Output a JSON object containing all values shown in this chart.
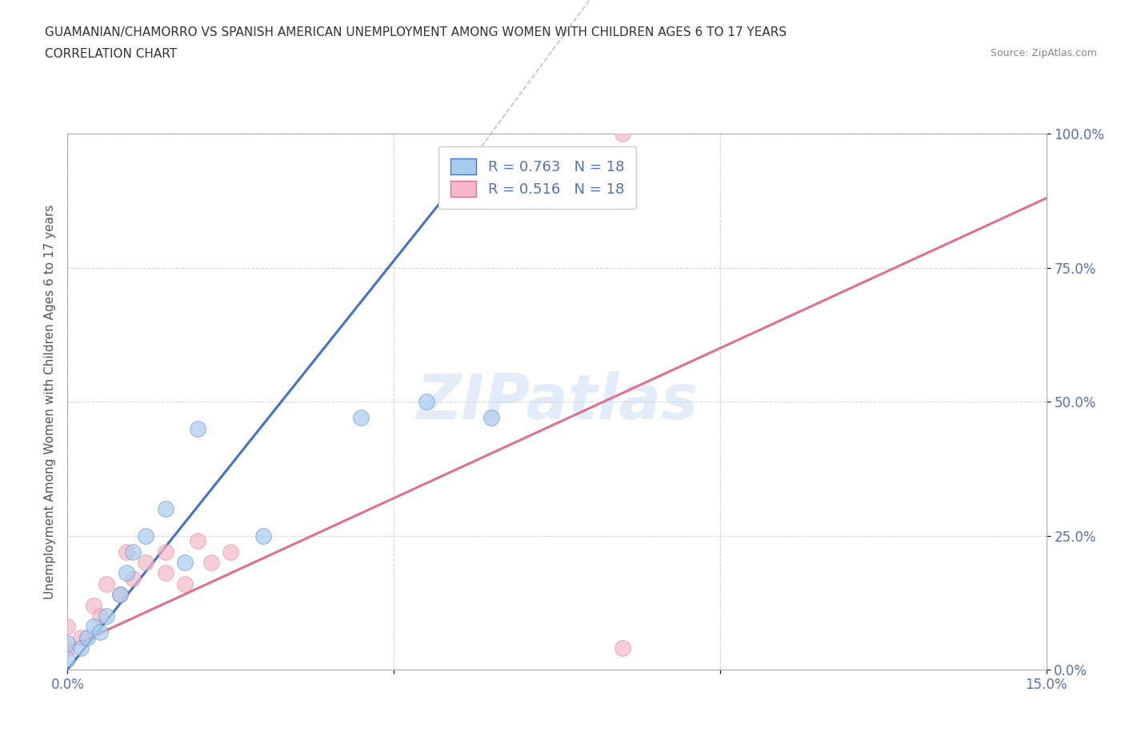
{
  "title_line1": "GUAMANIAN/CHAMORRO VS SPANISH AMERICAN UNEMPLOYMENT AMONG WOMEN WITH CHILDREN AGES 6 TO 17 YEARS",
  "title_line2": "CORRELATION CHART",
  "source": "Source: ZipAtlas.com",
  "ylabel": "Unemployment Among Women with Children Ages 6 to 17 years",
  "xlim": [
    0,
    0.15
  ],
  "ylim": [
    0,
    1.0
  ],
  "xticks": [
    0.0,
    0.05,
    0.1,
    0.15
  ],
  "xtick_labels": [
    "0.0%",
    "",
    "",
    "15.0%"
  ],
  "ytick_labels": [
    "0.0%",
    "25.0%",
    "50.0%",
    "75.0%",
    "100.0%"
  ],
  "yticks": [
    0.0,
    0.25,
    0.5,
    0.75,
    1.0
  ],
  "blue_R": 0.763,
  "blue_N": 18,
  "pink_R": 0.516,
  "pink_N": 18,
  "blue_color": "#A8CCEE",
  "pink_color": "#F5B8C8",
  "blue_line_color": "#4472C4",
  "pink_line_color": "#E07090",
  "watermark": "ZIPatlas",
  "blue_points_x": [
    0.0,
    0.0,
    0.002,
    0.003,
    0.004,
    0.005,
    0.006,
    0.008,
    0.009,
    0.01,
    0.012,
    0.015,
    0.018,
    0.02,
    0.03,
    0.045,
    0.055,
    0.065
  ],
  "blue_points_y": [
    0.02,
    0.05,
    0.04,
    0.06,
    0.08,
    0.07,
    0.1,
    0.14,
    0.18,
    0.22,
    0.25,
    0.3,
    0.2,
    0.45,
    0.25,
    0.47,
    0.5,
    0.47
  ],
  "pink_points_x": [
    0.0,
    0.0,
    0.002,
    0.004,
    0.005,
    0.006,
    0.008,
    0.009,
    0.01,
    0.012,
    0.015,
    0.015,
    0.018,
    0.02,
    0.022,
    0.025,
    0.085,
    0.085
  ],
  "pink_points_y": [
    0.04,
    0.08,
    0.06,
    0.12,
    0.1,
    0.16,
    0.14,
    0.22,
    0.17,
    0.2,
    0.22,
    0.18,
    0.16,
    0.24,
    0.2,
    0.22,
    0.04,
    1.0
  ],
  "blue_line_x": [
    0.0,
    0.057
  ],
  "blue_line_y": [
    0.0,
    0.87
  ],
  "pink_line_x": [
    0.0,
    0.15
  ],
  "pink_line_y": [
    0.04,
    0.88
  ],
  "background_color": "#FFFFFF",
  "grid_color": "#CCCCCC",
  "tick_color": "#5570B0"
}
